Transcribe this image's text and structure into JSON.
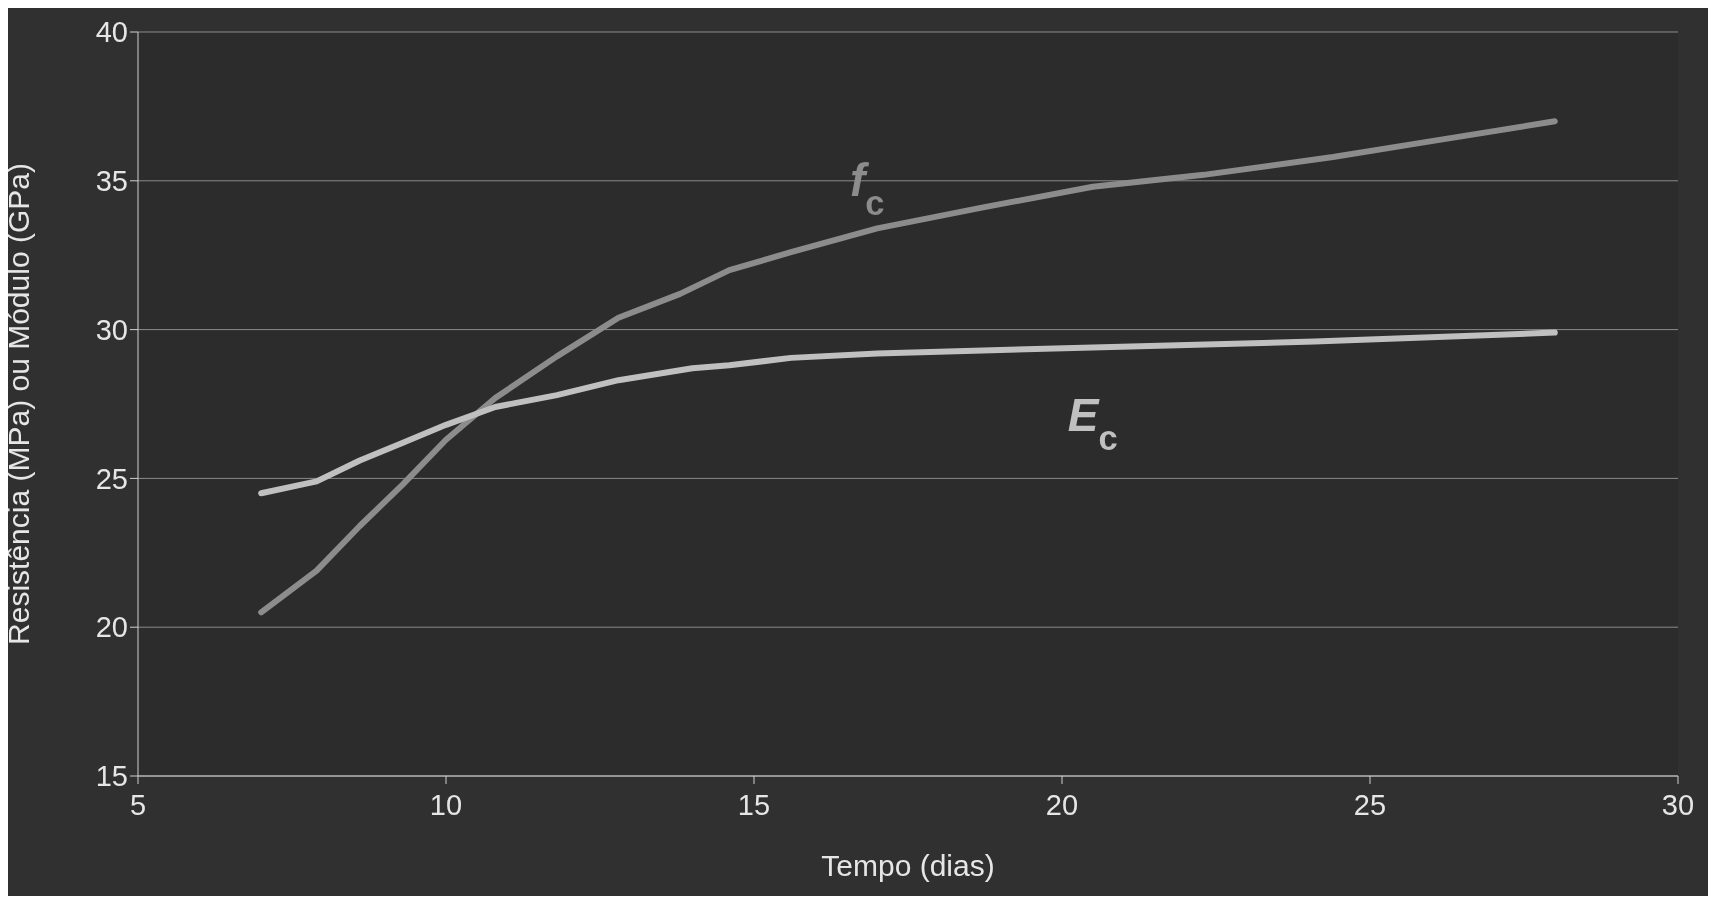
{
  "chart_data": {
    "type": "line",
    "xlabel": "Tempo (dias)",
    "ylabel": "Resistência (MPa) ou Módulo (GPa)",
    "xlim": [
      5,
      30
    ],
    "xticks": [
      5,
      10,
      15,
      20,
      25,
      30
    ],
    "ylim": [
      15,
      40
    ],
    "yticks": [
      15,
      20,
      25,
      30,
      35,
      40
    ],
    "grid": "y",
    "marker": "none",
    "line_style": "solid",
    "series": [
      {
        "name": "f$_{c}$",
        "color": "#8c8c8c",
        "x": [
          7,
          7.9,
          8.6,
          9.3,
          10,
          10.8,
          11.8,
          12.8,
          13.8,
          14.6,
          15.6,
          17,
          18.7,
          20.5,
          22.3,
          24.4,
          25.9,
          28
        ],
        "values": [
          20.5,
          21.9,
          23.4,
          24.8,
          26.3,
          27.7,
          29.1,
          30.4,
          31.2,
          32,
          32.6,
          33.4,
          34.1,
          34.8,
          35.2,
          35.8,
          36.3,
          37
        ]
      },
      {
        "name": "E$_{c}$",
        "color": "#c0c0c0",
        "x": [
          7,
          7.9,
          8.6,
          9.3,
          10,
          10.8,
          11.8,
          12.8,
          14,
          14.6,
          15.6,
          17,
          20.5,
          24.1,
          28
        ],
        "values": [
          24.5,
          24.9,
          25.6,
          26.2,
          26.8,
          27.4,
          27.8,
          28.3,
          28.7,
          28.8,
          29.05,
          29.2,
          29.4,
          29.6,
          29.9
        ]
      }
    ]
  }
}
